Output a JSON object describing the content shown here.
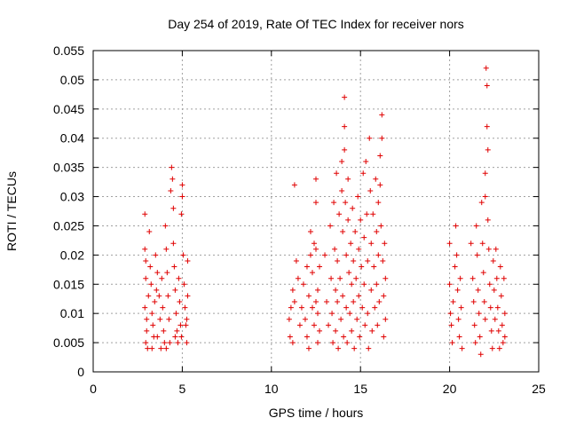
{
  "chart_data": {
    "type": "scatter",
    "title": "Day 254 of 2019, Rate Of TEC Index for receiver nors",
    "xlabel": "GPS time / hours",
    "ylabel": "ROTI / TECUs",
    "xlim": [
      0,
      25
    ],
    "ylim": [
      0,
      0.055
    ],
    "x_ticks": [
      0,
      5,
      10,
      15,
      20,
      25
    ],
    "x_tick_labels": [
      "0",
      "5",
      "10",
      "15",
      "20",
      "25"
    ],
    "y_ticks": [
      0,
      0.005,
      0.01,
      0.015,
      0.02,
      0.025,
      0.03,
      0.035,
      0.04,
      0.045,
      0.05,
      0.055
    ],
    "y_tick_labels": [
      "0",
      "0.005",
      "0.01",
      "0.015",
      "0.02",
      "0.025",
      "0.03",
      "0.035",
      "0.04",
      "0.045",
      "0.05",
      "0.055"
    ],
    "grid": true,
    "marker": "plus",
    "color": "#e00000",
    "series": [
      {
        "name": "ROTI",
        "points": [
          [
            2.9,
            0.027
          ],
          [
            2.9,
            0.021
          ],
          [
            2.95,
            0.019
          ],
          [
            2.95,
            0.016
          ],
          [
            2.9,
            0.011
          ],
          [
            3.0,
            0.009
          ],
          [
            3.0,
            0.007
          ],
          [
            2.95,
            0.005
          ],
          [
            3.05,
            0.004
          ],
          [
            3.1,
            0.013
          ],
          [
            3.15,
            0.024
          ],
          [
            3.2,
            0.018
          ],
          [
            3.25,
            0.015
          ],
          [
            3.3,
            0.01
          ],
          [
            3.35,
            0.008
          ],
          [
            3.4,
            0.006
          ],
          [
            3.45,
            0.012
          ],
          [
            3.5,
            0.02
          ],
          [
            3.55,
            0.014
          ],
          [
            3.6,
            0.006
          ],
          [
            3.7,
            0.013
          ],
          [
            3.75,
            0.009
          ],
          [
            3.8,
            0.004
          ],
          [
            3.85,
            0.016
          ],
          [
            3.9,
            0.011
          ],
          [
            3.95,
            0.007
          ],
          [
            4.0,
            0.005
          ],
          [
            4.05,
            0.025
          ],
          [
            4.1,
            0.021
          ],
          [
            4.15,
            0.017
          ],
          [
            4.2,
            0.013
          ],
          [
            4.25,
            0.009
          ],
          [
            4.3,
            0.005
          ],
          [
            4.35,
            0.031
          ],
          [
            4.4,
            0.035
          ],
          [
            4.45,
            0.033
          ],
          [
            4.5,
            0.028
          ],
          [
            4.5,
            0.022
          ],
          [
            4.55,
            0.018
          ],
          [
            4.6,
            0.014
          ],
          [
            4.65,
            0.01
          ],
          [
            4.7,
            0.007
          ],
          [
            4.75,
            0.005
          ],
          [
            4.8,
            0.016
          ],
          [
            4.85,
            0.012
          ],
          [
            4.9,
            0.008
          ],
          [
            4.95,
            0.006
          ],
          [
            4.95,
            0.027
          ],
          [
            5.0,
            0.03
          ],
          [
            5.0,
            0.032
          ],
          [
            5.05,
            0.02
          ],
          [
            5.1,
            0.015
          ],
          [
            5.15,
            0.011
          ],
          [
            5.2,
            0.008
          ],
          [
            5.25,
            0.005
          ],
          [
            5.3,
            0.019
          ],
          [
            5.3,
            0.013
          ],
          [
            5.25,
            0.009
          ],
          [
            3.6,
            0.017
          ],
          [
            4.1,
            0.004
          ],
          [
            4.6,
            0.006
          ],
          [
            3.3,
            0.004
          ],
          [
            11.3,
            0.032
          ],
          [
            11.2,
            0.014
          ],
          [
            11.1,
            0.011
          ],
          [
            11.0,
            0.009
          ],
          [
            11.05,
            0.006
          ],
          [
            11.2,
            0.005
          ],
          [
            11.3,
            0.012
          ],
          [
            11.4,
            0.019
          ],
          [
            11.5,
            0.016
          ],
          [
            11.6,
            0.008
          ],
          [
            11.7,
            0.011
          ],
          [
            11.8,
            0.015
          ],
          [
            11.9,
            0.009
          ],
          [
            12.0,
            0.018
          ],
          [
            12.0,
            0.006
          ],
          [
            12.1,
            0.013
          ],
          [
            12.1,
            0.004
          ],
          [
            12.2,
            0.024
          ],
          [
            12.2,
            0.02
          ],
          [
            12.3,
            0.017
          ],
          [
            12.3,
            0.011
          ],
          [
            12.4,
            0.022
          ],
          [
            12.4,
            0.008
          ],
          [
            12.5,
            0.033
          ],
          [
            12.5,
            0.029
          ],
          [
            12.5,
            0.021
          ],
          [
            12.6,
            0.014
          ],
          [
            12.6,
            0.01
          ],
          [
            12.6,
            0.005
          ],
          [
            12.7,
            0.018
          ],
          [
            12.7,
            0.007
          ],
          [
            12.5,
            0.012
          ],
          [
            13.0,
            0.02
          ],
          [
            13.1,
            0.012
          ],
          [
            13.2,
            0.008
          ],
          [
            13.3,
            0.025
          ],
          [
            13.35,
            0.016
          ],
          [
            13.4,
            0.01
          ],
          [
            13.45,
            0.005
          ],
          [
            13.5,
            0.029
          ],
          [
            13.55,
            0.021
          ],
          [
            13.6,
            0.014
          ],
          [
            13.6,
            0.007
          ],
          [
            13.65,
            0.034
          ],
          [
            13.7,
            0.019
          ],
          [
            13.7,
            0.012
          ],
          [
            13.75,
            0.004
          ],
          [
            13.8,
            0.027
          ],
          [
            13.85,
            0.016
          ],
          [
            13.9,
            0.009
          ],
          [
            13.95,
            0.036
          ],
          [
            13.95,
            0.031
          ],
          [
            14.0,
            0.024
          ],
          [
            14.0,
            0.013
          ],
          [
            14.05,
            0.006
          ],
          [
            14.1,
            0.047
          ],
          [
            14.1,
            0.042
          ],
          [
            14.1,
            0.038
          ],
          [
            14.15,
            0.029
          ],
          [
            14.2,
            0.02
          ],
          [
            14.2,
            0.011
          ],
          [
            14.25,
            0.005
          ],
          [
            14.3,
            0.033
          ],
          [
            14.3,
            0.026
          ],
          [
            14.35,
            0.017
          ],
          [
            14.4,
            0.01
          ],
          [
            14.45,
            0.022
          ],
          [
            14.5,
            0.015
          ],
          [
            14.5,
            0.007
          ],
          [
            14.55,
            0.028
          ],
          [
            14.6,
            0.019
          ],
          [
            14.6,
            0.012
          ],
          [
            14.65,
            0.004
          ],
          [
            14.7,
            0.024
          ],
          [
            14.75,
            0.016
          ],
          [
            14.8,
            0.009
          ],
          [
            14.85,
            0.03
          ],
          [
            14.9,
            0.021
          ],
          [
            14.9,
            0.013
          ],
          [
            14.95,
            0.006
          ],
          [
            15.0,
            0.026
          ],
          [
            15.05,
            0.018
          ],
          [
            15.1,
            0.011
          ],
          [
            15.15,
            0.034
          ],
          [
            15.2,
            0.023
          ],
          [
            15.2,
            0.015
          ],
          [
            15.25,
            0.008
          ],
          [
            15.3,
            0.036
          ],
          [
            15.35,
            0.027
          ],
          [
            15.4,
            0.019
          ],
          [
            15.4,
            0.01
          ],
          [
            15.45,
            0.004
          ],
          [
            15.5,
            0.04
          ],
          [
            15.55,
            0.031
          ],
          [
            15.6,
            0.022
          ],
          [
            15.6,
            0.014
          ],
          [
            15.65,
            0.007
          ],
          [
            15.7,
            0.027
          ],
          [
            15.75,
            0.018
          ],
          [
            15.8,
            0.011
          ],
          [
            15.85,
            0.033
          ],
          [
            15.9,
            0.024
          ],
          [
            15.9,
            0.015
          ],
          [
            15.95,
            0.008
          ],
          [
            16.0,
            0.029
          ],
          [
            16.0,
            0.02
          ],
          [
            16.05,
            0.012
          ],
          [
            16.1,
            0.037
          ],
          [
            16.1,
            0.032
          ],
          [
            16.15,
            0.025
          ],
          [
            16.2,
            0.044
          ],
          [
            16.2,
            0.04
          ],
          [
            16.25,
            0.019
          ],
          [
            16.3,
            0.013
          ],
          [
            16.3,
            0.006
          ],
          [
            16.35,
            0.022
          ],
          [
            16.4,
            0.016
          ],
          [
            16.4,
            0.009
          ],
          [
            20.0,
            0.022
          ],
          [
            20.0,
            0.015
          ],
          [
            20.05,
            0.01
          ],
          [
            20.1,
            0.008
          ],
          [
            20.15,
            0.005
          ],
          [
            20.2,
            0.012
          ],
          [
            20.3,
            0.018
          ],
          [
            20.35,
            0.025
          ],
          [
            20.4,
            0.02
          ],
          [
            20.45,
            0.014
          ],
          [
            20.5,
            0.009
          ],
          [
            20.55,
            0.006
          ],
          [
            20.6,
            0.016
          ],
          [
            20.65,
            0.011
          ],
          [
            20.7,
            0.004
          ],
          [
            21.2,
            0.022
          ],
          [
            21.3,
            0.016
          ],
          [
            21.35,
            0.012
          ],
          [
            21.4,
            0.008
          ],
          [
            21.45,
            0.005
          ],
          [
            21.5,
            0.025
          ],
          [
            21.55,
            0.02
          ],
          [
            21.6,
            0.014
          ],
          [
            21.65,
            0.01
          ],
          [
            21.7,
            0.006
          ],
          [
            21.75,
            0.003
          ],
          [
            21.8,
            0.029
          ],
          [
            21.85,
            0.022
          ],
          [
            21.9,
            0.017
          ],
          [
            21.95,
            0.012
          ],
          [
            22.0,
            0.034
          ],
          [
            22.0,
            0.03
          ],
          [
            22.0,
            0.009
          ],
          [
            22.05,
            0.052
          ],
          [
            22.1,
            0.049
          ],
          [
            22.1,
            0.042
          ],
          [
            22.15,
            0.038
          ],
          [
            22.15,
            0.026
          ],
          [
            22.2,
            0.021
          ],
          [
            22.25,
            0.015
          ],
          [
            22.3,
            0.011
          ],
          [
            22.35,
            0.007
          ],
          [
            22.4,
            0.004
          ],
          [
            22.45,
            0.019
          ],
          [
            22.5,
            0.014
          ],
          [
            22.55,
            0.009
          ],
          [
            22.6,
            0.021
          ],
          [
            22.65,
            0.016
          ],
          [
            22.7,
            0.011
          ],
          [
            22.75,
            0.007
          ],
          [
            22.8,
            0.004
          ],
          [
            22.85,
            0.018
          ],
          [
            22.9,
            0.013
          ],
          [
            22.95,
            0.008
          ],
          [
            23.0,
            0.005
          ],
          [
            23.05,
            0.016
          ],
          [
            23.1,
            0.01
          ],
          [
            23.1,
            0.006
          ]
        ]
      }
    ]
  }
}
